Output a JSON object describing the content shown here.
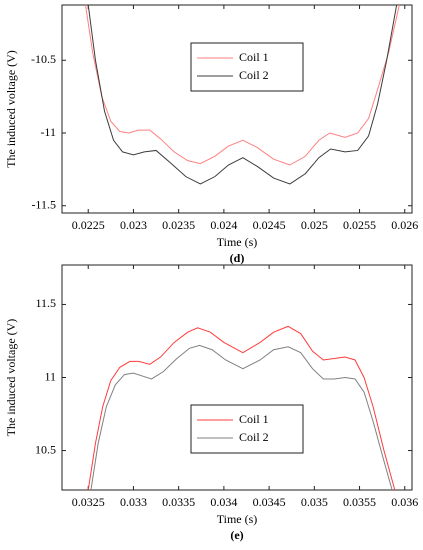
{
  "chart_data": [
    {
      "type": "line",
      "subtitle": "(d)",
      "xlabel": "Time (s)",
      "ylabel": "The induced voltage (V)",
      "xlim": [
        0.02221,
        0.02608
      ],
      "xticks": [
        0.0225,
        0.023,
        0.0235,
        0.024,
        0.0245,
        0.025,
        0.0255,
        0.026
      ],
      "ylim": [
        -11.55,
        -10.12
      ],
      "yticks": [
        -11.5,
        -11,
        -10.5
      ],
      "legend": "upper center",
      "series": [
        {
          "name": "Coil 1",
          "color": "#ff7f7f",
          "x": [
            0.02247,
            0.02255,
            0.02265,
            0.02275,
            0.02285,
            0.02295,
            0.02305,
            0.02318,
            0.0233,
            0.02345,
            0.0236,
            0.02374,
            0.0239,
            0.02405,
            0.02421,
            0.02437,
            0.02455,
            0.02473,
            0.0249,
            0.02505,
            0.02517,
            0.02534,
            0.02548,
            0.0256,
            0.0257,
            0.02582,
            0.02594
          ],
          "values": [
            -10.12,
            -10.45,
            -10.75,
            -10.92,
            -10.99,
            -11.0,
            -10.98,
            -10.98,
            -11.04,
            -11.13,
            -11.19,
            -11.21,
            -11.16,
            -11.09,
            -11.05,
            -11.1,
            -11.18,
            -11.22,
            -11.16,
            -11.05,
            -11.0,
            -11.03,
            -11.0,
            -10.9,
            -10.7,
            -10.45,
            -10.12
          ]
        },
        {
          "name": "Coil 2",
          "color": "#3c3c3c",
          "x": [
            0.0225,
            0.02258,
            0.02268,
            0.02278,
            0.02288,
            0.023,
            0.02312,
            0.02325,
            0.0234,
            0.02358,
            0.02374,
            0.0239,
            0.02405,
            0.02421,
            0.02437,
            0.02455,
            0.02473,
            0.0249,
            0.02505,
            0.02518,
            0.02534,
            0.02548,
            0.0256,
            0.0257,
            0.0258,
            0.02591
          ],
          "values": [
            -10.12,
            -10.5,
            -10.85,
            -11.05,
            -11.13,
            -11.15,
            -11.13,
            -11.12,
            -11.2,
            -11.3,
            -11.35,
            -11.3,
            -11.22,
            -11.17,
            -11.23,
            -11.31,
            -11.35,
            -11.28,
            -11.17,
            -11.11,
            -11.13,
            -11.12,
            -11.02,
            -10.8,
            -10.5,
            -10.12
          ]
        }
      ]
    },
    {
      "type": "line",
      "subtitle": "(e)",
      "xlabel": "Time (s)",
      "ylabel": "The induced voltage (V)",
      "xlim": [
        0.03221,
        0.03608
      ],
      "xticks": [
        0.0325,
        0.033,
        0.0335,
        0.034,
        0.0345,
        0.035,
        0.0355,
        0.036
      ],
      "ylim": [
        10.23,
        11.77
      ],
      "yticks": [
        10.5,
        11,
        11.5
      ],
      "legend": "lower center",
      "series": [
        {
          "name": "Coil 1",
          "color": "#ff3c3c",
          "x": [
            0.0325,
            0.03258,
            0.03266,
            0.03275,
            0.03285,
            0.03296,
            0.03306,
            0.03318,
            0.0333,
            0.03345,
            0.0336,
            0.03371,
            0.03385,
            0.034,
            0.03421,
            0.0344,
            0.03455,
            0.03471,
            0.03485,
            0.03498,
            0.0351,
            0.03522,
            0.03534,
            0.03545,
            0.03555,
            0.03565,
            0.03577,
            0.03589
          ],
          "values": [
            10.23,
            10.55,
            10.8,
            10.98,
            11.07,
            11.11,
            11.11,
            11.09,
            11.14,
            11.24,
            11.31,
            11.34,
            11.31,
            11.24,
            11.17,
            11.24,
            11.31,
            11.35,
            11.3,
            11.18,
            11.12,
            11.13,
            11.14,
            11.12,
            11.0,
            10.8,
            10.5,
            10.23
          ]
        },
        {
          "name": "Coil 2",
          "color": "#808080",
          "x": [
            0.03253,
            0.03261,
            0.0327,
            0.0328,
            0.0329,
            0.033,
            0.0331,
            0.0332,
            0.03333,
            0.03348,
            0.03362,
            0.03373,
            0.03387,
            0.03402,
            0.03421,
            0.0344,
            0.03455,
            0.03471,
            0.03485,
            0.03498,
            0.0351,
            0.03522,
            0.03534,
            0.03545,
            0.03555,
            0.03565,
            0.03576,
            0.03586
          ],
          "values": [
            10.23,
            10.55,
            10.8,
            10.95,
            11.02,
            11.03,
            11.01,
            10.99,
            11.04,
            11.13,
            11.2,
            11.22,
            11.19,
            11.12,
            11.06,
            11.12,
            11.19,
            11.21,
            11.17,
            11.06,
            10.99,
            10.99,
            11.0,
            10.99,
            10.9,
            10.7,
            10.45,
            10.23
          ]
        }
      ]
    }
  ]
}
